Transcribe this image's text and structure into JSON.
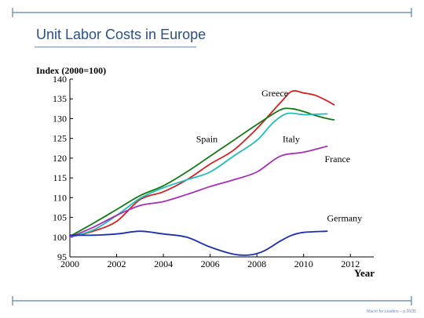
{
  "slide": {
    "title": "Unit Labor Costs in Europe",
    "footer": "Macro for Leaders – p.26/35",
    "accent_color": "#5b7fb5"
  },
  "chart_data": {
    "type": "line",
    "title": "",
    "ylabel": "Index (2000=100)",
    "xlabel": "Year",
    "xlim": [
      2000,
      2013
    ],
    "ylim": [
      95,
      140
    ],
    "x_ticks": [
      2000,
      2002,
      2004,
      2006,
      2008,
      2010,
      2012
    ],
    "y_ticks": [
      95,
      100,
      105,
      110,
      115,
      120,
      125,
      130,
      135,
      140
    ],
    "grid": false,
    "series": [
      {
        "name": "Greece",
        "color": "#d42020",
        "points": [
          [
            2000,
            100
          ],
          [
            2001,
            101.5
          ],
          [
            2002,
            104
          ],
          [
            2003,
            109.5
          ],
          [
            2004,
            111.5
          ],
          [
            2005,
            114.5
          ],
          [
            2006,
            118.5
          ],
          [
            2007,
            122
          ],
          [
            2008,
            127.5
          ],
          [
            2009,
            134
          ],
          [
            2009.5,
            136.9
          ],
          [
            2010,
            136.5
          ],
          [
            2010.5,
            135.9
          ],
          [
            2011,
            134.5
          ],
          [
            2011.3,
            133.5
          ]
        ]
      },
      {
        "name": "Spain",
        "color": "#137a13",
        "points": [
          [
            2000,
            100.2
          ],
          [
            2001,
            103.5
          ],
          [
            2002,
            107
          ],
          [
            2003,
            110.5
          ],
          [
            2004,
            113
          ],
          [
            2005,
            116.5
          ],
          [
            2006,
            120.5
          ],
          [
            2007,
            124.5
          ],
          [
            2008,
            128.5
          ],
          [
            2009,
            132.2
          ],
          [
            2009.5,
            132.5
          ],
          [
            2010,
            131.8
          ],
          [
            2010.5,
            130.8
          ],
          [
            2011,
            130
          ],
          [
            2011.3,
            129.7
          ]
        ]
      },
      {
        "name": "Italy",
        "color": "#1fbcbc",
        "points": [
          [
            2000,
            100
          ],
          [
            2001,
            101.8
          ],
          [
            2002,
            105.5
          ],
          [
            2003,
            109.8
          ],
          [
            2004,
            112.5
          ],
          [
            2005,
            114.5
          ],
          [
            2006,
            116.5
          ],
          [
            2007,
            120.5
          ],
          [
            2008,
            124.5
          ],
          [
            2008.7,
            129
          ],
          [
            2009.3,
            131.3
          ],
          [
            2010,
            131
          ],
          [
            2010.5,
            131.1
          ],
          [
            2011,
            131.2
          ]
        ]
      },
      {
        "name": "France",
        "color": "#a82fb8",
        "points": [
          [
            2000,
            100
          ],
          [
            2001,
            102.5
          ],
          [
            2002,
            105.5
          ],
          [
            2003,
            108
          ],
          [
            2004,
            109
          ],
          [
            2005,
            110.8
          ],
          [
            2006,
            112.8
          ],
          [
            2007,
            114.5
          ],
          [
            2008,
            116.5
          ],
          [
            2009,
            120.5
          ],
          [
            2010,
            121.5
          ],
          [
            2011,
            123
          ]
        ]
      },
      {
        "name": "Germany",
        "color": "#1a2fb5",
        "points": [
          [
            2000,
            100.5
          ],
          [
            2001,
            100.5
          ],
          [
            2002,
            100.8
          ],
          [
            2003,
            101.5
          ],
          [
            2004,
            100.8
          ],
          [
            2005,
            100
          ],
          [
            2006,
            97.5
          ],
          [
            2007,
            95.7
          ],
          [
            2007.7,
            95.5
          ],
          [
            2008.3,
            96.5
          ],
          [
            2009,
            99
          ],
          [
            2009.5,
            100.5
          ],
          [
            2010,
            101.2
          ],
          [
            2011,
            101.5
          ]
        ]
      }
    ],
    "annotations": [
      {
        "text": "Greece",
        "x": 2008.2,
        "y": 135.6
      },
      {
        "text": "Spain",
        "x": 2005.4,
        "y": 124.0
      },
      {
        "text": "Italy",
        "x": 2009.1,
        "y": 124.0
      },
      {
        "text": "France",
        "x": 2010.9,
        "y": 119.0
      },
      {
        "text": "Germany",
        "x": 2011.0,
        "y": 104.0
      }
    ]
  }
}
